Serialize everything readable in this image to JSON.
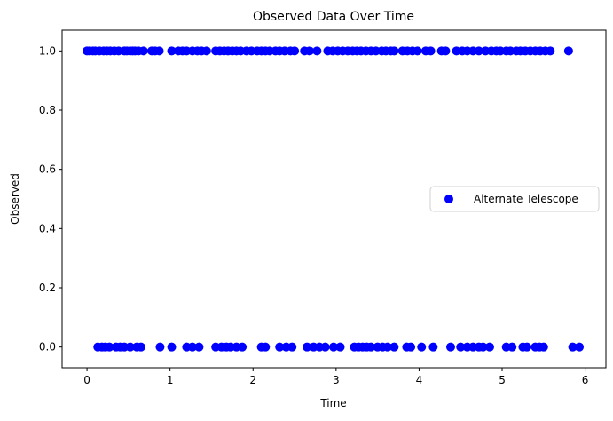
{
  "chart_data": {
    "type": "scatter",
    "title": "Observed Data Over Time",
    "xlabel": "Time",
    "ylabel": "Observed",
    "xlim": [
      -0.3,
      6.25
    ],
    "ylim": [
      -0.07,
      1.07
    ],
    "x_ticks": [
      0,
      1,
      2,
      3,
      4,
      5,
      6
    ],
    "x_tick_labels": [
      "0",
      "1",
      "2",
      "3",
      "4",
      "5",
      "6"
    ],
    "y_ticks": [
      0.0,
      0.2,
      0.4,
      0.6,
      0.8,
      1.0
    ],
    "y_tick_labels": [
      "0.0",
      "0.2",
      "0.4",
      "0.6",
      "0.8",
      "1.0"
    ],
    "grid": false,
    "legend_position": "center-right",
    "series": [
      {
        "name": "Alternate Telescope",
        "color": "#0000ff",
        "points": [
          {
            "x": 0.0,
            "y": 1
          },
          {
            "x": 0.03,
            "y": 1
          },
          {
            "x": 0.07,
            "y": 1
          },
          {
            "x": 0.1,
            "y": 1
          },
          {
            "x": 0.15,
            "y": 1
          },
          {
            "x": 0.2,
            "y": 1
          },
          {
            "x": 0.24,
            "y": 1
          },
          {
            "x": 0.28,
            "y": 1
          },
          {
            "x": 0.33,
            "y": 1
          },
          {
            "x": 0.38,
            "y": 1
          },
          {
            "x": 0.45,
            "y": 1
          },
          {
            "x": 0.48,
            "y": 1
          },
          {
            "x": 0.52,
            "y": 1
          },
          {
            "x": 0.55,
            "y": 1
          },
          {
            "x": 0.58,
            "y": 1
          },
          {
            "x": 0.62,
            "y": 1
          },
          {
            "x": 0.68,
            "y": 1
          },
          {
            "x": 0.78,
            "y": 1
          },
          {
            "x": 0.82,
            "y": 1
          },
          {
            "x": 0.87,
            "y": 1
          },
          {
            "x": 1.02,
            "y": 1
          },
          {
            "x": 1.1,
            "y": 1
          },
          {
            "x": 1.15,
            "y": 1
          },
          {
            "x": 1.2,
            "y": 1
          },
          {
            "x": 1.27,
            "y": 1
          },
          {
            "x": 1.33,
            "y": 1
          },
          {
            "x": 1.38,
            "y": 1
          },
          {
            "x": 1.44,
            "y": 1
          },
          {
            "x": 1.55,
            "y": 1
          },
          {
            "x": 1.6,
            "y": 1
          },
          {
            "x": 1.65,
            "y": 1
          },
          {
            "x": 1.7,
            "y": 1
          },
          {
            "x": 1.75,
            "y": 1
          },
          {
            "x": 1.8,
            "y": 1
          },
          {
            "x": 1.85,
            "y": 1
          },
          {
            "x": 1.92,
            "y": 1
          },
          {
            "x": 1.98,
            "y": 1
          },
          {
            "x": 2.05,
            "y": 1
          },
          {
            "x": 2.1,
            "y": 1
          },
          {
            "x": 2.15,
            "y": 1
          },
          {
            "x": 2.2,
            "y": 1
          },
          {
            "x": 2.27,
            "y": 1
          },
          {
            "x": 2.32,
            "y": 1
          },
          {
            "x": 2.38,
            "y": 1
          },
          {
            "x": 2.45,
            "y": 1
          },
          {
            "x": 2.5,
            "y": 1
          },
          {
            "x": 2.62,
            "y": 1
          },
          {
            "x": 2.68,
            "y": 1
          },
          {
            "x": 2.77,
            "y": 1
          },
          {
            "x": 2.9,
            "y": 1
          },
          {
            "x": 2.96,
            "y": 1
          },
          {
            "x": 3.02,
            "y": 1
          },
          {
            "x": 3.08,
            "y": 1
          },
          {
            "x": 3.14,
            "y": 1
          },
          {
            "x": 3.2,
            "y": 1
          },
          {
            "x": 3.25,
            "y": 1
          },
          {
            "x": 3.3,
            "y": 1
          },
          {
            "x": 3.36,
            "y": 1
          },
          {
            "x": 3.42,
            "y": 1
          },
          {
            "x": 3.48,
            "y": 1
          },
          {
            "x": 3.55,
            "y": 1
          },
          {
            "x": 3.6,
            "y": 1
          },
          {
            "x": 3.66,
            "y": 1
          },
          {
            "x": 3.7,
            "y": 1
          },
          {
            "x": 3.8,
            "y": 1
          },
          {
            "x": 3.86,
            "y": 1
          },
          {
            "x": 3.92,
            "y": 1
          },
          {
            "x": 3.98,
            "y": 1
          },
          {
            "x": 4.08,
            "y": 1
          },
          {
            "x": 4.14,
            "y": 1
          },
          {
            "x": 4.27,
            "y": 1
          },
          {
            "x": 4.32,
            "y": 1
          },
          {
            "x": 4.45,
            "y": 1
          },
          {
            "x": 4.52,
            "y": 1
          },
          {
            "x": 4.58,
            "y": 1
          },
          {
            "x": 4.65,
            "y": 1
          },
          {
            "x": 4.72,
            "y": 1
          },
          {
            "x": 4.8,
            "y": 1
          },
          {
            "x": 4.87,
            "y": 1
          },
          {
            "x": 4.93,
            "y": 1
          },
          {
            "x": 4.98,
            "y": 1
          },
          {
            "x": 5.05,
            "y": 1
          },
          {
            "x": 5.1,
            "y": 1
          },
          {
            "x": 5.17,
            "y": 1
          },
          {
            "x": 5.22,
            "y": 1
          },
          {
            "x": 5.28,
            "y": 1
          },
          {
            "x": 5.34,
            "y": 1
          },
          {
            "x": 5.4,
            "y": 1
          },
          {
            "x": 5.46,
            "y": 1
          },
          {
            "x": 5.52,
            "y": 1
          },
          {
            "x": 5.58,
            "y": 1
          },
          {
            "x": 5.8,
            "y": 1
          },
          {
            "x": 0.13,
            "y": 0
          },
          {
            "x": 0.18,
            "y": 0
          },
          {
            "x": 0.22,
            "y": 0
          },
          {
            "x": 0.27,
            "y": 0
          },
          {
            "x": 0.35,
            "y": 0
          },
          {
            "x": 0.4,
            "y": 0
          },
          {
            "x": 0.45,
            "y": 0
          },
          {
            "x": 0.52,
            "y": 0
          },
          {
            "x": 0.6,
            "y": 0
          },
          {
            "x": 0.65,
            "y": 0
          },
          {
            "x": 0.88,
            "y": 0
          },
          {
            "x": 1.02,
            "y": 0
          },
          {
            "x": 1.2,
            "y": 0
          },
          {
            "x": 1.27,
            "y": 0
          },
          {
            "x": 1.35,
            "y": 0
          },
          {
            "x": 1.55,
            "y": 0
          },
          {
            "x": 1.62,
            "y": 0
          },
          {
            "x": 1.68,
            "y": 0
          },
          {
            "x": 1.73,
            "y": 0
          },
          {
            "x": 1.8,
            "y": 0
          },
          {
            "x": 1.87,
            "y": 0
          },
          {
            "x": 2.1,
            "y": 0
          },
          {
            "x": 2.15,
            "y": 0
          },
          {
            "x": 2.32,
            "y": 0
          },
          {
            "x": 2.4,
            "y": 0
          },
          {
            "x": 2.47,
            "y": 0
          },
          {
            "x": 2.65,
            "y": 0
          },
          {
            "x": 2.73,
            "y": 0
          },
          {
            "x": 2.8,
            "y": 0
          },
          {
            "x": 2.87,
            "y": 0
          },
          {
            "x": 2.97,
            "y": 0
          },
          {
            "x": 3.05,
            "y": 0
          },
          {
            "x": 3.22,
            "y": 0
          },
          {
            "x": 3.27,
            "y": 0
          },
          {
            "x": 3.32,
            "y": 0
          },
          {
            "x": 3.37,
            "y": 0
          },
          {
            "x": 3.42,
            "y": 0
          },
          {
            "x": 3.5,
            "y": 0
          },
          {
            "x": 3.56,
            "y": 0
          },
          {
            "x": 3.62,
            "y": 0
          },
          {
            "x": 3.7,
            "y": 0
          },
          {
            "x": 3.85,
            "y": 0
          },
          {
            "x": 3.9,
            "y": 0
          },
          {
            "x": 4.03,
            "y": 0
          },
          {
            "x": 4.17,
            "y": 0
          },
          {
            "x": 4.38,
            "y": 0
          },
          {
            "x": 4.5,
            "y": 0
          },
          {
            "x": 4.58,
            "y": 0
          },
          {
            "x": 4.65,
            "y": 0
          },
          {
            "x": 4.72,
            "y": 0
          },
          {
            "x": 4.77,
            "y": 0
          },
          {
            "x": 4.85,
            "y": 0
          },
          {
            "x": 5.05,
            "y": 0
          },
          {
            "x": 5.12,
            "y": 0
          },
          {
            "x": 5.25,
            "y": 0
          },
          {
            "x": 5.3,
            "y": 0
          },
          {
            "x": 5.4,
            "y": 0
          },
          {
            "x": 5.45,
            "y": 0
          },
          {
            "x": 5.5,
            "y": 0
          },
          {
            "x": 5.85,
            "y": 0
          },
          {
            "x": 5.93,
            "y": 0
          }
        ]
      }
    ]
  }
}
